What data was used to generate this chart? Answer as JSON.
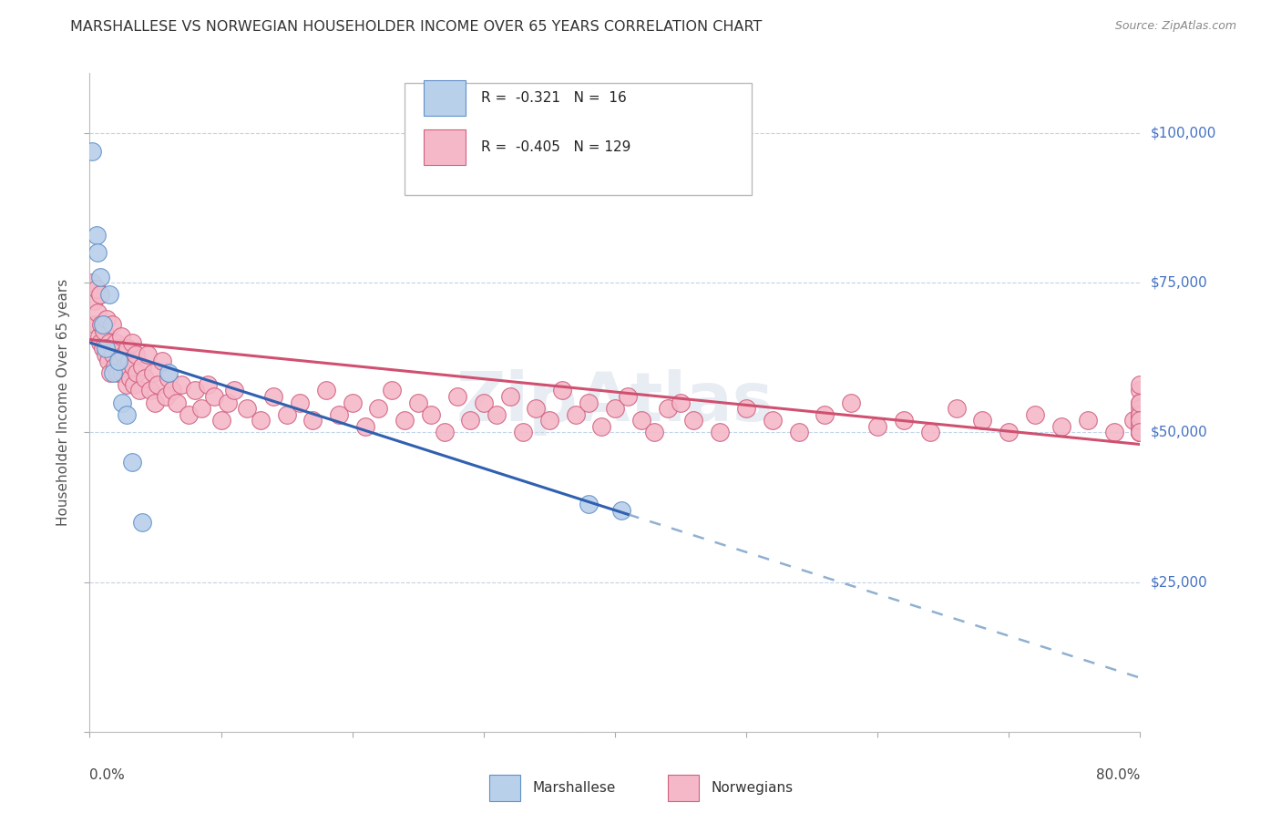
{
  "title": "MARSHALLESE VS NORWEGIAN HOUSEHOLDER INCOME OVER 65 YEARS CORRELATION CHART",
  "source": "Source: ZipAtlas.com",
  "ylabel": "Householder Income Over 65 years",
  "xlim": [
    0.0,
    0.8
  ],
  "ylim": [
    0,
    110000
  ],
  "yticks": [
    0,
    25000,
    50000,
    75000,
    100000
  ],
  "ytick_labels": [
    "",
    "$25,000",
    "$50,000",
    "$75,000",
    "$100,000"
  ],
  "legend_r_marsh": "-0.321",
  "legend_n_marsh": "16",
  "legend_r_norw": "-0.405",
  "legend_n_norw": "129",
  "marsh_scatter_color": "#b8d0ea",
  "marsh_edge_color": "#6090c8",
  "norw_scatter_color": "#f5b8c8",
  "norw_edge_color": "#d06080",
  "marsh_line_color": "#3060b0",
  "norw_line_color": "#d05070",
  "dashed_line_color": "#90b0d0",
  "watermark": "ZipAtlas",
  "marsh_x": [
    0.002,
    0.005,
    0.006,
    0.008,
    0.01,
    0.012,
    0.015,
    0.018,
    0.022,
    0.025,
    0.028,
    0.032,
    0.04,
    0.06,
    0.38,
    0.405
  ],
  "marsh_y": [
    97000,
    83000,
    80000,
    76000,
    68000,
    64000,
    73000,
    60000,
    62000,
    55000,
    53000,
    45000,
    35000,
    60000,
    38000,
    37000
  ],
  "norw_x": [
    0.002,
    0.003,
    0.004,
    0.005,
    0.006,
    0.007,
    0.008,
    0.008,
    0.009,
    0.01,
    0.011,
    0.012,
    0.013,
    0.014,
    0.015,
    0.016,
    0.017,
    0.018,
    0.019,
    0.02,
    0.021,
    0.022,
    0.023,
    0.024,
    0.025,
    0.026,
    0.027,
    0.028,
    0.029,
    0.03,
    0.031,
    0.032,
    0.033,
    0.034,
    0.035,
    0.036,
    0.038,
    0.04,
    0.042,
    0.044,
    0.046,
    0.048,
    0.05,
    0.052,
    0.055,
    0.058,
    0.06,
    0.063,
    0.066,
    0.07,
    0.075,
    0.08,
    0.085,
    0.09,
    0.095,
    0.1,
    0.105,
    0.11,
    0.12,
    0.13,
    0.14,
    0.15,
    0.16,
    0.17,
    0.18,
    0.19,
    0.2,
    0.21,
    0.22,
    0.23,
    0.24,
    0.25,
    0.26,
    0.27,
    0.28,
    0.29,
    0.3,
    0.31,
    0.32,
    0.33,
    0.34,
    0.35,
    0.36,
    0.37,
    0.38,
    0.39,
    0.4,
    0.41,
    0.42,
    0.43,
    0.44,
    0.45,
    0.46,
    0.48,
    0.5,
    0.52,
    0.54,
    0.56,
    0.58,
    0.6,
    0.62,
    0.64,
    0.66,
    0.68,
    0.7,
    0.72,
    0.74,
    0.76,
    0.78,
    0.795,
    0.8,
    0.8,
    0.8,
    0.8,
    0.8,
    0.8,
    0.8,
    0.8,
    0.8,
    0.8,
    0.8,
    0.8,
    0.8,
    0.8,
    0.8,
    0.8,
    0.8,
    0.8,
    0.8
  ],
  "norw_y": [
    75000,
    72000,
    68000,
    74000,
    70000,
    66000,
    65000,
    73000,
    68000,
    64000,
    67000,
    63000,
    69000,
    62000,
    65000,
    60000,
    68000,
    63000,
    61000,
    65000,
    60000,
    64000,
    62000,
    66000,
    60000,
    63000,
    61000,
    58000,
    64000,
    62000,
    59000,
    65000,
    61000,
    58000,
    63000,
    60000,
    57000,
    61000,
    59000,
    63000,
    57000,
    60000,
    55000,
    58000,
    62000,
    56000,
    59000,
    57000,
    55000,
    58000,
    53000,
    57000,
    54000,
    58000,
    56000,
    52000,
    55000,
    57000,
    54000,
    52000,
    56000,
    53000,
    55000,
    52000,
    57000,
    53000,
    55000,
    51000,
    54000,
    57000,
    52000,
    55000,
    53000,
    50000,
    56000,
    52000,
    55000,
    53000,
    56000,
    50000,
    54000,
    52000,
    57000,
    53000,
    55000,
    51000,
    54000,
    56000,
    52000,
    50000,
    54000,
    55000,
    52000,
    50000,
    54000,
    52000,
    50000,
    53000,
    55000,
    51000,
    52000,
    50000,
    54000,
    52000,
    50000,
    53000,
    51000,
    52000,
    50000,
    52000,
    50000,
    53000,
    51000,
    50000,
    52000,
    57000,
    55000,
    53000,
    58000,
    50000,
    52000,
    50000,
    54000,
    51000,
    53000,
    55000,
    50000,
    52000,
    50000
  ]
}
